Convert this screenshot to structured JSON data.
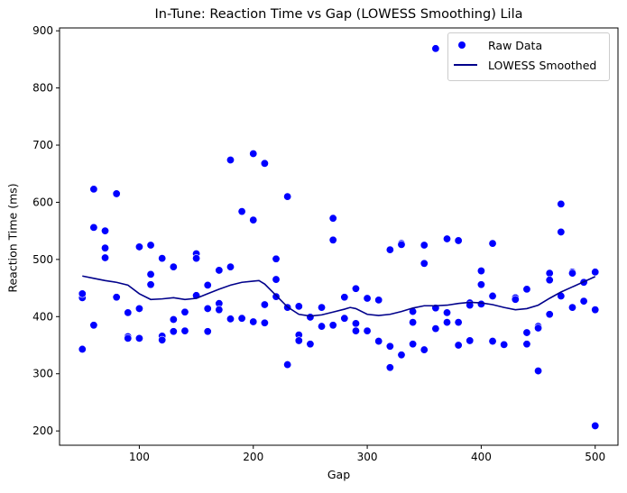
{
  "chart_data": {
    "type": "scatter",
    "title": "In-Tune: Reaction Time vs Gap (LOWESS Smoothing) Lila",
    "xlabel": "Gap",
    "ylabel": "Reaction Time (ms)",
    "xlim": [
      30,
      520
    ],
    "ylim": [
      175,
      905
    ],
    "xticks": [
      100,
      200,
      300,
      400,
      500
    ],
    "yticks": [
      200,
      300,
      400,
      500,
      600,
      700,
      800,
      900
    ],
    "grid": false,
    "legend_position": "top-right",
    "series": [
      {
        "name": "Raw Data",
        "kind": "scatter",
        "color": "#0000ff",
        "points": [
          [
            50,
            433
          ],
          [
            50,
            440
          ],
          [
            50,
            343
          ],
          [
            60,
            623
          ],
          [
            60,
            556
          ],
          [
            60,
            385
          ],
          [
            70,
            550
          ],
          [
            70,
            520
          ],
          [
            70,
            503
          ],
          [
            80,
            615
          ],
          [
            80,
            434
          ],
          [
            90,
            407
          ],
          [
            90,
            365
          ],
          [
            90,
            362
          ],
          [
            100,
            522
          ],
          [
            100,
            414
          ],
          [
            100,
            362
          ],
          [
            110,
            525
          ],
          [
            110,
            474
          ],
          [
            110,
            456
          ],
          [
            120,
            502
          ],
          [
            120,
            366
          ],
          [
            120,
            359
          ],
          [
            130,
            487
          ],
          [
            130,
            395
          ],
          [
            130,
            374
          ],
          [
            140,
            408
          ],
          [
            140,
            375
          ],
          [
            150,
            510
          ],
          [
            150,
            502
          ],
          [
            150,
            437
          ],
          [
            160,
            455
          ],
          [
            160,
            414
          ],
          [
            160,
            374
          ],
          [
            170,
            481
          ],
          [
            170,
            423
          ],
          [
            170,
            412
          ],
          [
            180,
            674
          ],
          [
            180,
            487
          ],
          [
            180,
            396
          ],
          [
            190,
            584
          ],
          [
            190,
            397
          ],
          [
            200,
            685
          ],
          [
            200,
            569
          ],
          [
            200,
            391
          ],
          [
            210,
            668
          ],
          [
            210,
            421
          ],
          [
            210,
            389
          ],
          [
            220,
            501
          ],
          [
            220,
            465
          ],
          [
            220,
            435
          ],
          [
            230,
            610
          ],
          [
            230,
            416
          ],
          [
            230,
            316
          ],
          [
            240,
            418
          ],
          [
            240,
            368
          ],
          [
            240,
            358
          ],
          [
            250,
            399
          ],
          [
            250,
            352
          ],
          [
            260,
            416
          ],
          [
            260,
            383
          ],
          [
            270,
            572
          ],
          [
            270,
            534
          ],
          [
            270,
            385
          ],
          [
            280,
            434
          ],
          [
            280,
            397
          ],
          [
            290,
            449
          ],
          [
            290,
            388
          ],
          [
            290,
            375
          ],
          [
            300,
            432
          ],
          [
            300,
            375
          ],
          [
            310,
            429
          ],
          [
            310,
            357
          ],
          [
            320,
            517
          ],
          [
            320,
            348
          ],
          [
            320,
            311
          ],
          [
            330,
            528
          ],
          [
            330,
            526
          ],
          [
            330,
            333
          ],
          [
            340,
            409
          ],
          [
            340,
            390
          ],
          [
            340,
            352
          ],
          [
            350,
            525
          ],
          [
            350,
            493
          ],
          [
            350,
            342
          ],
          [
            360,
            869
          ],
          [
            360,
            415
          ],
          [
            360,
            379
          ],
          [
            370,
            536
          ],
          [
            370,
            407
          ],
          [
            370,
            390
          ],
          [
            380,
            533
          ],
          [
            380,
            390
          ],
          [
            380,
            350
          ],
          [
            390,
            424
          ],
          [
            390,
            420
          ],
          [
            390,
            358
          ],
          [
            400,
            480
          ],
          [
            400,
            456
          ],
          [
            400,
            422
          ],
          [
            410,
            528
          ],
          [
            410,
            436
          ],
          [
            410,
            357
          ],
          [
            420,
            351
          ],
          [
            430,
            433
          ],
          [
            430,
            430
          ],
          [
            440,
            448
          ],
          [
            440,
            372
          ],
          [
            440,
            352
          ],
          [
            450,
            383
          ],
          [
            450,
            380
          ],
          [
            450,
            305
          ],
          [
            460,
            476
          ],
          [
            460,
            464
          ],
          [
            460,
            404
          ],
          [
            470,
            597
          ],
          [
            470,
            548
          ],
          [
            470,
            436
          ],
          [
            480,
            478
          ],
          [
            480,
            476
          ],
          [
            480,
            416
          ],
          [
            490,
            460
          ],
          [
            490,
            427
          ],
          [
            500,
            478
          ],
          [
            500,
            412
          ],
          [
            500,
            209
          ]
        ]
      },
      {
        "name": "LOWESS Smoothed",
        "kind": "line",
        "color": "#00008b",
        "points": [
          [
            50,
            471
          ],
          [
            60,
            467
          ],
          [
            70,
            463
          ],
          [
            80,
            460
          ],
          [
            90,
            455
          ],
          [
            100,
            440
          ],
          [
            110,
            430
          ],
          [
            120,
            431
          ],
          [
            130,
            433
          ],
          [
            140,
            430
          ],
          [
            150,
            432
          ],
          [
            160,
            440
          ],
          [
            170,
            448
          ],
          [
            180,
            455
          ],
          [
            190,
            460
          ],
          [
            200,
            462
          ],
          [
            205,
            463
          ],
          [
            210,
            457
          ],
          [
            220,
            437
          ],
          [
            230,
            417
          ],
          [
            240,
            404
          ],
          [
            250,
            401
          ],
          [
            260,
            403
          ],
          [
            270,
            408
          ],
          [
            280,
            413
          ],
          [
            285,
            416
          ],
          [
            290,
            414
          ],
          [
            300,
            404
          ],
          [
            310,
            402
          ],
          [
            320,
            404
          ],
          [
            330,
            409
          ],
          [
            340,
            415
          ],
          [
            350,
            419
          ],
          [
            360,
            419
          ],
          [
            370,
            420
          ],
          [
            380,
            423
          ],
          [
            390,
            425
          ],
          [
            400,
            424
          ],
          [
            410,
            421
          ],
          [
            420,
            416
          ],
          [
            430,
            412
          ],
          [
            440,
            414
          ],
          [
            450,
            420
          ],
          [
            460,
            432
          ],
          [
            470,
            443
          ],
          [
            480,
            452
          ],
          [
            490,
            461
          ],
          [
            500,
            470
          ]
        ]
      }
    ]
  }
}
